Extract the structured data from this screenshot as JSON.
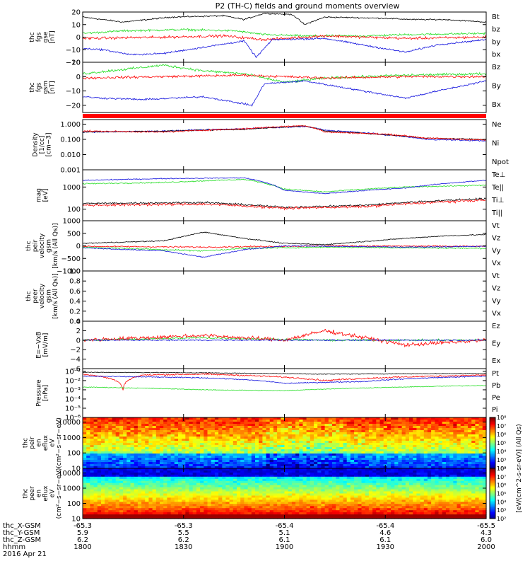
{
  "title": "P2 (TH-C) fields and ground moments overview",
  "colors": {
    "black": "#000000",
    "red": "#ff0000",
    "green": "#22dd22",
    "blue": "#1010dd"
  },
  "chart_data": {
    "type": "line",
    "time_axis": {
      "date": "2016 Apr 21",
      "ticks_hhmm": [
        "1800",
        "1830",
        "1900",
        "1930",
        "2000"
      ],
      "rows": [
        {
          "name": "thc_X-GSM",
          "values": [
            "-65.3",
            "-65.3",
            "-65.4",
            "-65.4",
            "-65.5"
          ]
        },
        {
          "name": "thc_Y-GSM",
          "values": [
            "5.9",
            "5.5",
            "5.1",
            "4.6",
            "4.3"
          ]
        },
        {
          "name": "thc_Z-GSM",
          "values": [
            "6.2",
            "6.2",
            "6.1",
            "6.1",
            "6.0"
          ]
        },
        {
          "name": "hhmm",
          "values": []
        }
      ]
    },
    "panels": [
      {
        "id": "fgs-gse",
        "ylabel": [
          "thc",
          "fgs",
          "gse",
          "[nT]"
        ],
        "scale": "linear",
        "ylim": [
          -20,
          20
        ],
        "ticks": [
          "20",
          "10",
          "0",
          "−10",
          "−20"
        ],
        "legend": [
          {
            "name": "Bt",
            "color": "black"
          },
          {
            "name": "bz",
            "color": "red"
          },
          {
            "name": "by",
            "color": "green"
          },
          {
            "name": "bx",
            "color": "blue"
          }
        ]
      },
      {
        "id": "fgs-gsm",
        "ylabel": [
          "thc",
          "fgs",
          "gsm",
          "[nT]"
        ],
        "scale": "linear",
        "ylim": [
          -25,
          10
        ],
        "ticks": [
          "10",
          "0",
          "−10",
          "−20"
        ],
        "legend": [
          {
            "name": "Bz",
            "color": "red"
          },
          {
            "name": "By",
            "color": "green"
          },
          {
            "name": "Bx",
            "color": "blue"
          }
        ]
      },
      {
        "id": "density",
        "ylabel": [
          "Density",
          "[1/cc]",
          "[cm−3]"
        ],
        "scale": "log",
        "ylim": [
          0.001,
          2
        ],
        "ticks": [
          "1.000",
          "0.100",
          "0.010",
          "0.001"
        ],
        "legend": [
          {
            "name": "Ne",
            "color": "red"
          },
          {
            "name": "Ni",
            "color": "black"
          },
          {
            "name": "Npot",
            "color": "blue"
          }
        ]
      },
      {
        "id": "temperature",
        "ylabel": [
          "mag",
          "[eV]"
        ],
        "scale": "log",
        "ylim": [
          30,
          6000
        ],
        "ticks": [
          "1000",
          "100"
        ],
        "legend": [
          {
            "name": "Te⊥",
            "color": "red"
          },
          {
            "name": "Te||",
            "color": "black"
          },
          {
            "name": "Ti⊥",
            "color": "red"
          },
          {
            "name": "Ti||",
            "color": "green"
          }
        ]
      },
      {
        "id": "peir-velocity",
        "ylabel": [
          "thc",
          "peir",
          "velocity",
          "gsm",
          "[km/s (All Qs)]"
        ],
        "scale": "linear",
        "ylim": [
          -1000,
          1000
        ],
        "ticks": [
          "1000",
          "500",
          "0",
          "−500",
          "−1000"
        ],
        "legend": [
          {
            "name": "Vt",
            "color": "black"
          },
          {
            "name": "Vz",
            "color": "red"
          },
          {
            "name": "Vy",
            "color": "green"
          },
          {
            "name": "Vx",
            "color": "blue"
          }
        ]
      },
      {
        "id": "peer-velocity",
        "ylabel": [
          "thc",
          "peer",
          "velocity",
          "gsm",
          "[km/s (All Qs)]"
        ],
        "scale": "linear",
        "ylim": [
          0,
          1
        ],
        "ticks": [
          "1.0",
          "0.8",
          "0.6",
          "0.4",
          "0.2",
          "0.0"
        ],
        "legend": [
          {
            "name": "Vt",
            "color": "black"
          },
          {
            "name": "Vz",
            "color": "red"
          },
          {
            "name": "Vy",
            "color": "green"
          },
          {
            "name": "Vx",
            "color": "blue"
          }
        ]
      },
      {
        "id": "efield",
        "ylabel": [
          "E=−VxB",
          "[mV/m]"
        ],
        "scale": "linear",
        "ylim": [
          -6,
          4
        ],
        "ticks": [
          "4",
          "2",
          "0",
          "−2",
          "−4",
          "−6"
        ],
        "legend": [
          {
            "name": "Ez",
            "color": "red"
          },
          {
            "name": "Ey",
            "color": "green"
          },
          {
            "name": "Ex",
            "color": "blue"
          }
        ]
      },
      {
        "id": "pressure",
        "ylabel": [
          "Pressure",
          "[nPa]"
        ],
        "scale": "log",
        "ylim": [
          1e-06,
          0.2
        ],
        "ticks": [
          "10⁻¹",
          "10⁻²",
          "10⁻³",
          "10⁻⁴",
          "10⁻⁵",
          "10⁻⁶"
        ],
        "legend": [
          {
            "name": "Pt",
            "color": "black"
          },
          {
            "name": "Pb",
            "color": "red"
          },
          {
            "name": "Pe",
            "color": "green"
          },
          {
            "name": "Pi",
            "color": "blue"
          }
        ]
      },
      {
        "id": "peir-spectrogram",
        "ylabel": [
          "thc",
          "peir",
          "en",
          "eflux",
          "eV",
          "(cm²−s−sr−eV)"
        ],
        "scale": "log",
        "ylim": [
          10,
          20000
        ],
        "ticks": [
          "10000",
          "1000",
          "100",
          "10"
        ],
        "legend": []
      },
      {
        "id": "peer-spectrogram",
        "ylabel": [
          "thc",
          "peer",
          "en",
          "eflux",
          "eV",
          "(cm²−s−sr−eV)"
        ],
        "scale": "log",
        "ylim": [
          10,
          20000
        ],
        "ticks": [
          "10000",
          "1000",
          "100",
          "10"
        ],
        "legend": []
      }
    ],
    "colorbars": [
      {
        "ticks": [
          "10⁸",
          "10⁷",
          "10⁶",
          "10⁵",
          "10⁴",
          "10³",
          "10²"
        ],
        "scale": "log",
        "range": [
          100,
          100000000
        ]
      },
      {
        "ticks": [
          "10⁸",
          "10⁷",
          "10⁶",
          "10⁵",
          "10⁴",
          "10³",
          "10²"
        ],
        "scale": "log",
        "range": [
          100,
          100000000
        ]
      }
    ],
    "colorbar_label": "[eV/(cm^2-s-sr-eV)] (All Qs)"
  }
}
